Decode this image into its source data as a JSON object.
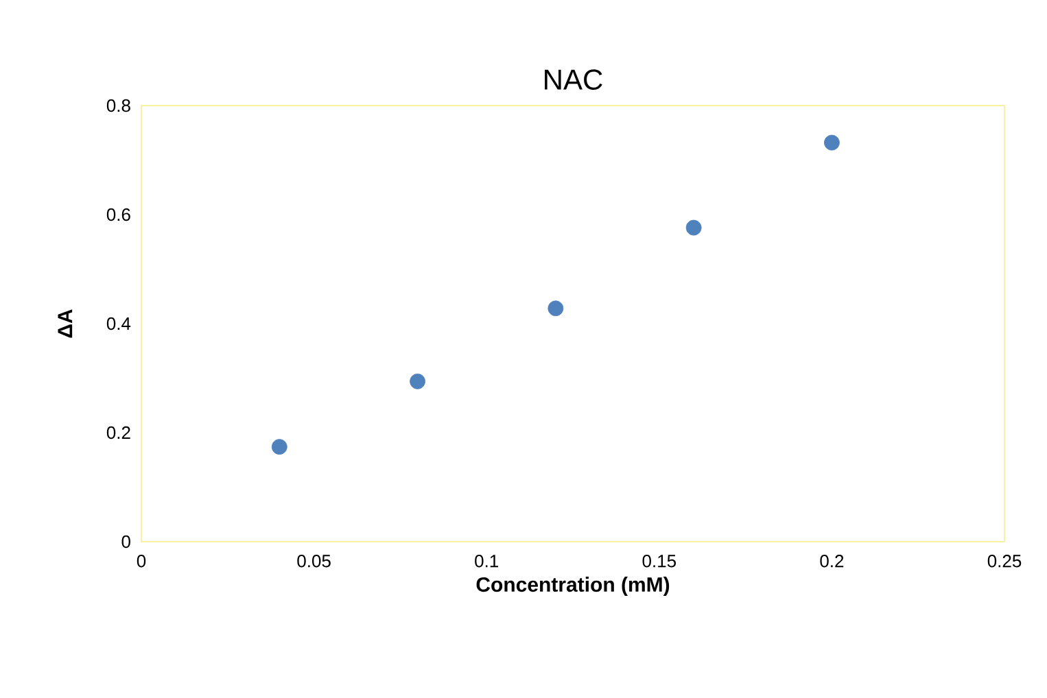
{
  "chart_data": {
    "type": "scatter",
    "title": "NAC",
    "xlabel": "Concentration (mM)",
    "ylabel": "ΔA",
    "x": [
      0.04,
      0.08,
      0.12,
      0.16,
      0.2
    ],
    "values": [
      0.174,
      0.294,
      0.428,
      0.576,
      0.732
    ],
    "color": "#4f81bd",
    "marker": "circle",
    "xlim": [
      0,
      0.25
    ],
    "ylim": [
      0,
      0.8
    ],
    "xticks": [
      0,
      0.05,
      0.1,
      0.15,
      0.2,
      0.25
    ],
    "yticks": [
      0,
      0.2,
      0.4,
      0.6,
      0.8
    ]
  }
}
